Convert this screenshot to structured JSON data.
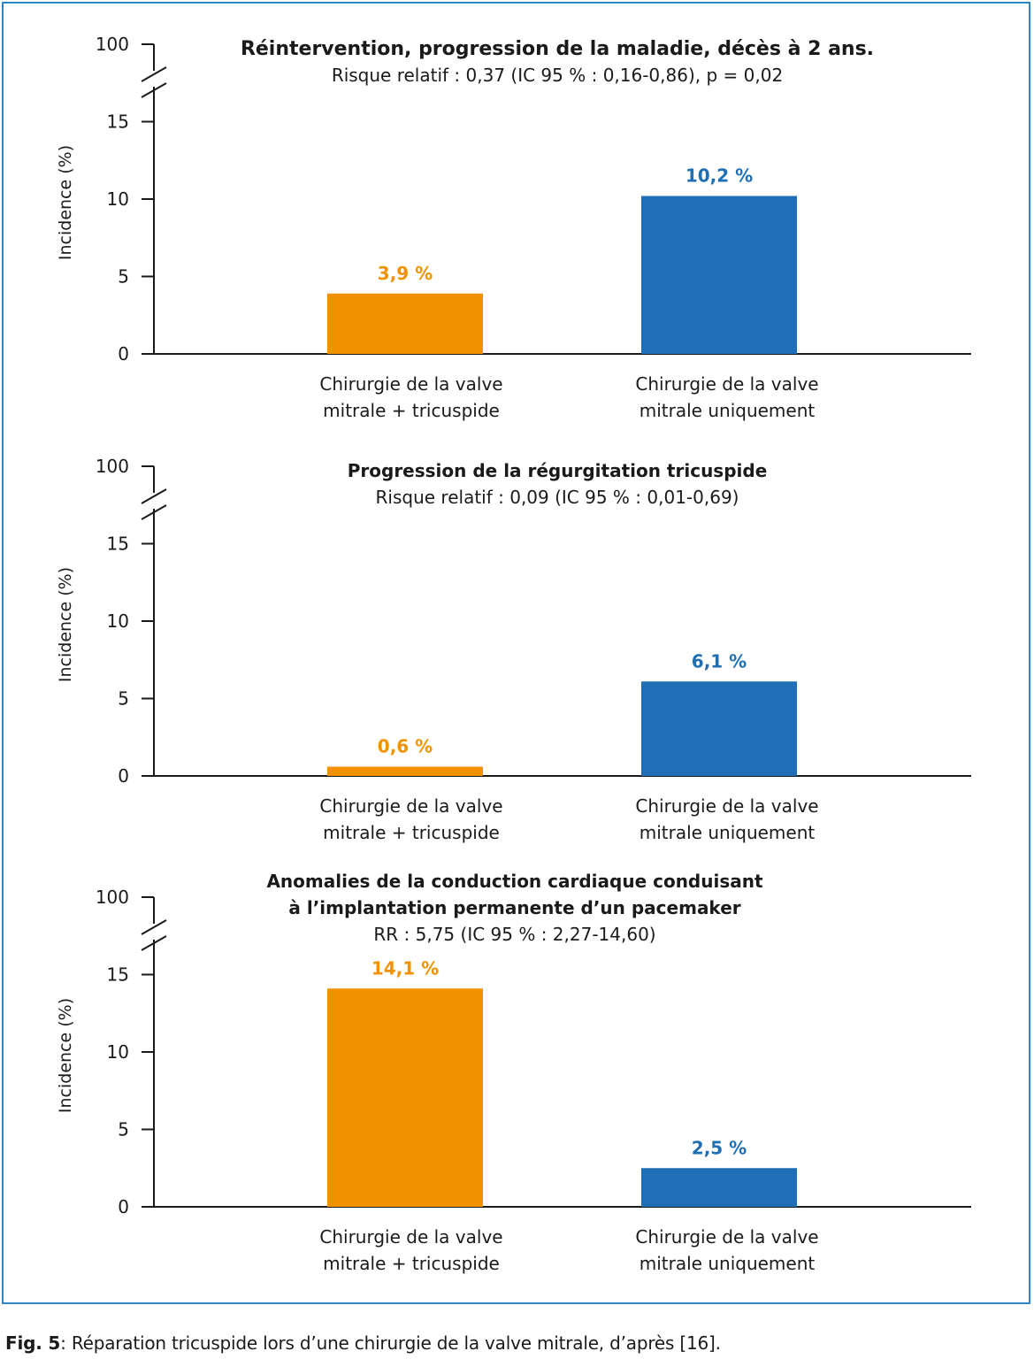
{
  "colors": {
    "frame": "#2e86c8",
    "series_a": "#f39200",
    "series_b": "#1f6fb6",
    "label_b": "#1f6fb6",
    "axis": "#1a1a1a"
  },
  "caption": {
    "prefix": "Fig. 5",
    "text": ": Réparation tricuspide lors d’une chirurgie de la valve mitrale, d’après [16]."
  },
  "chart_data": [
    {
      "type": "bar",
      "title_lines": [
        "Réintervention, progression de la maladie, décès à 2 ans."
      ],
      "subtitle": "Risque relatif : 0,37 (IC 95 % : 0,16-0,86), p = 0,02",
      "ylabel": "Incidence (%)",
      "yticks": [
        "0",
        "5",
        "10",
        "15",
        "100"
      ],
      "y_axis_break": "between 15 and 100",
      "categories": [
        [
          "Chirurgie de la valve",
          "mitrale + tricuspide"
        ],
        [
          "Chirurgie de la valve",
          "mitrale uniquement"
        ]
      ],
      "values": [
        3.9,
        10.2
      ],
      "data_labels": [
        "3,9 %",
        "10,2 %"
      ],
      "ylim": [
        0,
        15
      ]
    },
    {
      "type": "bar",
      "title_lines": [
        "Progression de la régurgitation tricuspide"
      ],
      "subtitle": "Risque relatif : 0,09 (IC 95 % : 0,01-0,69)",
      "ylabel": "Incidence (%)",
      "yticks": [
        "0",
        "5",
        "10",
        "15",
        "100"
      ],
      "y_axis_break": "between 15 and 100",
      "categories": [
        [
          "Chirurgie de la valve",
          "mitrale + tricuspide"
        ],
        [
          "Chirurgie de la valve",
          "mitrale uniquement"
        ]
      ],
      "values": [
        0.6,
        6.1
      ],
      "data_labels": [
        "0,6 %",
        "6,1 %"
      ],
      "ylim": [
        0,
        15
      ]
    },
    {
      "type": "bar",
      "title_lines": [
        "Anomalies de la conduction cardiaque conduisant",
        "à l’implantation permanente d’un pacemaker"
      ],
      "subtitle": "RR : 5,75 (IC 95 % : 2,27-14,60)",
      "ylabel": "Incidence (%)",
      "yticks": [
        "0",
        "5",
        "10",
        "15",
        "100"
      ],
      "y_axis_break": "between 15 and 100",
      "categories": [
        [
          "Chirurgie de la valve",
          "mitrale + tricuspide"
        ],
        [
          "Chirurgie de la valve",
          "mitrale uniquement"
        ]
      ],
      "values": [
        14.1,
        2.5
      ],
      "data_labels": [
        "14,1 %",
        "2,5 %"
      ],
      "ylim": [
        0,
        15
      ]
    }
  ]
}
